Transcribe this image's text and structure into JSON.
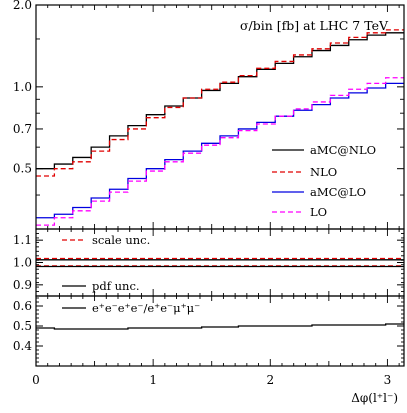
{
  "chart_data": {
    "type": "line",
    "title": "σ/bin [fb]   at LHC 7 TeV",
    "xlabel": "Δφ(l⁺l⁻)",
    "xlim": [
      0,
      3.1416
    ],
    "x_ticks": [
      "0",
      "1",
      "2",
      "3"
    ],
    "bin_edges": [
      0,
      0.157,
      0.314,
      0.471,
      0.628,
      0.785,
      0.942,
      1.1,
      1.257,
      1.414,
      1.571,
      1.728,
      1.885,
      2.042,
      2.199,
      2.356,
      2.513,
      2.67,
      2.827,
      2.985,
      3.1416
    ],
    "panels": [
      {
        "name": "main",
        "yscale": "log",
        "ylim": [
          0.3,
          2.0
        ],
        "y_ticks": [
          "0.5",
          "0.7",
          "1.0",
          "2.0"
        ],
        "y_tick_values": [
          0.5,
          0.7,
          1.0,
          2.0
        ],
        "legend": "right",
        "series": [
          {
            "name": "aMC@NLO",
            "color": "#000000",
            "style": "solid",
            "values": [
              0.5,
              0.52,
              0.55,
              0.6,
              0.66,
              0.72,
              0.79,
              0.85,
              0.91,
              0.97,
              1.03,
              1.09,
              1.16,
              1.22,
              1.29,
              1.36,
              1.42,
              1.49,
              1.55,
              1.58
            ]
          },
          {
            "name": "NLO",
            "color": "#e00000",
            "style": "dashed",
            "values": [
              0.47,
              0.5,
              0.53,
              0.58,
              0.64,
              0.7,
              0.77,
              0.84,
              0.91,
              0.98,
              1.04,
              1.1,
              1.17,
              1.24,
              1.31,
              1.38,
              1.45,
              1.52,
              1.58,
              1.62
            ]
          },
          {
            "name": "aMC@LO",
            "color": "#0000e0",
            "style": "solid",
            "values": [
              0.33,
              0.34,
              0.36,
              0.39,
              0.42,
              0.46,
              0.5,
              0.54,
              0.58,
              0.62,
              0.66,
              0.7,
              0.74,
              0.78,
              0.82,
              0.86,
              0.91,
              0.95,
              0.99,
              1.03
            ]
          },
          {
            "name": "LO",
            "color": "#ff00ff",
            "style": "dashed",
            "values": [
              0.31,
              0.33,
              0.35,
              0.38,
              0.41,
              0.45,
              0.49,
              0.53,
              0.57,
              0.61,
              0.65,
              0.69,
              0.73,
              0.78,
              0.83,
              0.88,
              0.93,
              0.98,
              1.03,
              1.08
            ]
          }
        ]
      },
      {
        "name": "ratio",
        "yscale": "linear",
        "ylim": [
          0.85,
          1.15
        ],
        "y_ticks": [
          "0.9",
          "1.0",
          "1.1"
        ],
        "y_tick_values": [
          0.9,
          1.0,
          1.1
        ],
        "legend": "top-left",
        "series": [
          {
            "name": "scale unc.",
            "color": "#e00000",
            "style": "dashed",
            "values": [
              1.018,
              1.018,
              1.018,
              1.018,
              1.018,
              1.018,
              1.018,
              1.018,
              1.018,
              1.018,
              1.018,
              1.018,
              1.018,
              1.018,
              1.018,
              1.018,
              1.018,
              1.018,
              1.018,
              1.018
            ]
          },
          {
            "name": "scale unc. (lower)",
            "color": "#e00000",
            "style": "dashed",
            "label_hidden": true,
            "values": [
              0.985,
              0.985,
              0.985,
              0.985,
              0.985,
              0.985,
              0.985,
              0.985,
              0.985,
              0.985,
              0.985,
              0.985,
              0.985,
              0.985,
              0.985,
              0.985,
              0.985,
              0.985,
              0.985,
              0.985
            ]
          },
          {
            "name": "pdf unc.",
            "color": "#000000",
            "style": "solid",
            "values": [
              1.012,
              1.012,
              1.012,
              1.012,
              1.012,
              1.012,
              1.012,
              1.012,
              1.012,
              1.012,
              1.012,
              1.012,
              1.012,
              1.012,
              1.012,
              1.012,
              1.012,
              1.012,
              1.012,
              1.012
            ]
          },
          {
            "name": "pdf unc. (lower)",
            "color": "#000000",
            "style": "solid",
            "label_hidden": true,
            "values": [
              0.982,
              0.982,
              0.982,
              0.982,
              0.982,
              0.982,
              0.982,
              0.982,
              0.982,
              0.982,
              0.982,
              0.982,
              0.982,
              0.982,
              0.982,
              0.982,
              0.982,
              0.982,
              0.982,
              0.982
            ]
          }
        ],
        "legend_entries": [
          "scale unc.",
          "pdf unc."
        ]
      },
      {
        "name": "ratio2",
        "yscale": "linear",
        "ylim": [
          0.3,
          0.65
        ],
        "y_ticks": [
          "0.4",
          "0.5",
          "0.6"
        ],
        "y_tick_values": [
          0.4,
          0.5,
          0.6
        ],
        "legend": "top-left",
        "series": [
          {
            "name": "e⁺e⁻e⁺e⁻/e⁺e⁻μ⁺μ⁻",
            "color": "#000000",
            "style": "solid",
            "values": [
              0.49,
              0.485,
              0.485,
              0.485,
              0.485,
              0.49,
              0.49,
              0.49,
              0.49,
              0.495,
              0.495,
              0.5,
              0.5,
              0.5,
              0.5,
              0.505,
              0.505,
              0.505,
              0.505,
              0.51
            ]
          }
        ]
      }
    ]
  }
}
